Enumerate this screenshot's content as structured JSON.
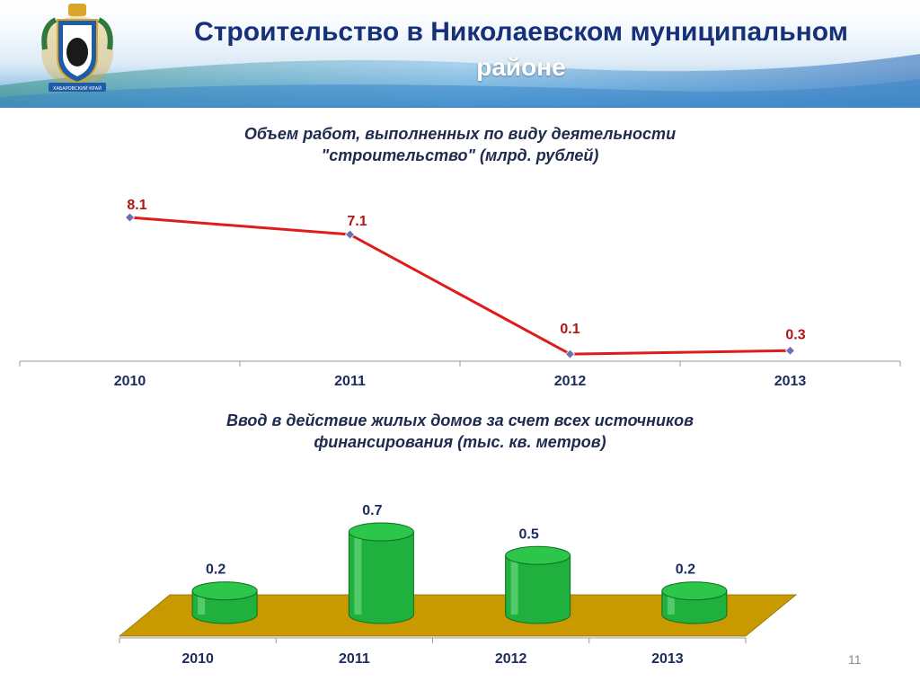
{
  "slide": {
    "title_line1": "Строительство в Николаевском муниципальном",
    "title_line2": "районе",
    "emblem_text": "ХАБАРОВСКИЙ КРАЙ",
    "page_number": "11"
  },
  "colors": {
    "title": "#16307a",
    "line": "#e01b1b",
    "marker": "#6d6fb5",
    "bar": "#1fb03d",
    "floor": "#c99a00"
  },
  "chart_data": [
    {
      "type": "line",
      "title_line1": "Объем работ, выполненных по виду деятельности",
      "title_line2": "\"строительство\" (млрд. рублей)",
      "categories": [
        "2010",
        "2011",
        "2012",
        "2013"
      ],
      "values": [
        8.1,
        7.1,
        0.1,
        0.3
      ],
      "data_labels": [
        "8.1",
        "7.1",
        "0.1",
        "0.3"
      ],
      "ylim": [
        0,
        8.1
      ],
      "grid": false
    },
    {
      "type": "bar",
      "style": "3d-cylinder",
      "title_line1": "Ввод в действие жилых домов за счет всех источников",
      "title_line2": "финансирования (тыс. кв. метров)",
      "categories": [
        "2010",
        "2011",
        "2012",
        "2013"
      ],
      "values": [
        0.2,
        0.7,
        0.5,
        0.2
      ],
      "data_labels": [
        "0.2",
        "0.7",
        "0.5",
        "0.2"
      ],
      "grid": false
    }
  ]
}
